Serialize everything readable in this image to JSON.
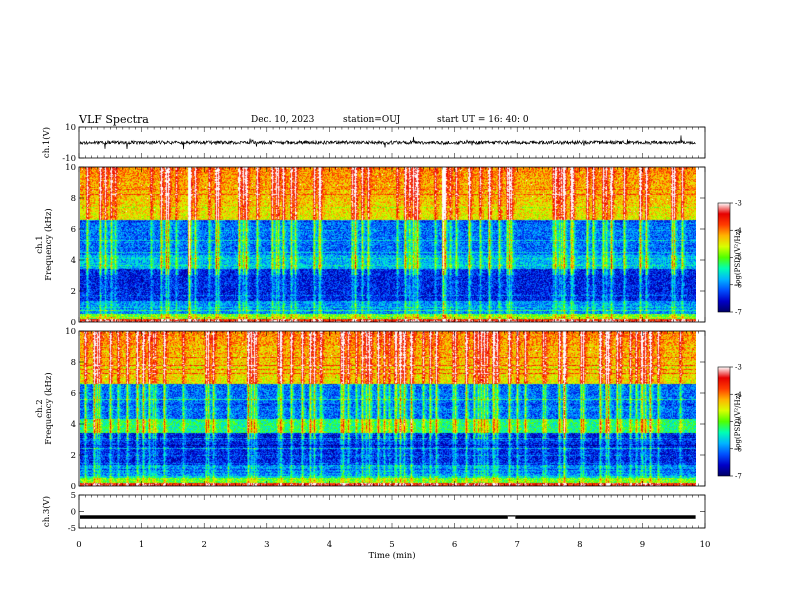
{
  "header": {
    "title": "VLF Spectra",
    "date": "Dec. 10, 2023",
    "station": "station=OUJ",
    "start": "start UT =  16: 40: 0"
  },
  "chart_data": [
    {
      "type": "line",
      "name": "ch1-waveform",
      "ylabel": "ch.1(V)",
      "ylim": [
        -10,
        10
      ],
      "y_ticks": [
        "10",
        "-10"
      ],
      "xlim": [
        0,
        10
      ],
      "baseline": 0,
      "color": "#000000"
    },
    {
      "type": "heatmap",
      "name": "ch1-spectrogram",
      "ylabel": "ch.1\nFrequency (kHz)",
      "ylim": [
        0,
        10
      ],
      "y_ticks": [
        "0",
        "2",
        "4",
        "6",
        "8",
        "10"
      ],
      "xlim": [
        0,
        9.85
      ],
      "colorbar": {
        "label": "log(PSD)(V²/Hz)",
        "range": [
          -7,
          -3
        ],
        "ticks": [
          "-3",
          "-4",
          "-5",
          "-6",
          "-7"
        ]
      }
    },
    {
      "type": "heatmap",
      "name": "ch2-spectrogram",
      "ylabel": "ch.2\nFrequency (kHz)",
      "ylim": [
        0,
        10
      ],
      "y_ticks": [
        "0",
        "2",
        "4",
        "6",
        "8",
        "10"
      ],
      "xlim": [
        0,
        9.85
      ],
      "colorbar": {
        "label": "log(PSD)(V²/Hz)",
        "range": [
          -7,
          -3
        ],
        "ticks": [
          "-3",
          "-4",
          "-5",
          "-6",
          "-7"
        ]
      }
    },
    {
      "type": "line",
      "name": "ch3-waveform",
      "ylabel": "ch.3(V)",
      "ylim": [
        -5,
        5
      ],
      "y_ticks": [
        "5",
        "0",
        "-5"
      ],
      "xlim": [
        0,
        10
      ],
      "baseline": -1.6,
      "dropout_min": 6.85,
      "color": "#000000"
    }
  ],
  "x_axis": {
    "label": "Time (min)",
    "range": [
      0,
      10
    ],
    "ticks": [
      "0",
      "1",
      "2",
      "3",
      "4",
      "5",
      "6",
      "7",
      "8",
      "9",
      "10"
    ]
  },
  "colors": {
    "colormap": [
      "#000066",
      "#0000c8",
      "#0050ff",
      "#00b4ff",
      "#00ffb4",
      "#50ff00",
      "#d8ff00",
      "#ffb400",
      "#ff3c00",
      "#e60000",
      "#ffffff"
    ]
  }
}
